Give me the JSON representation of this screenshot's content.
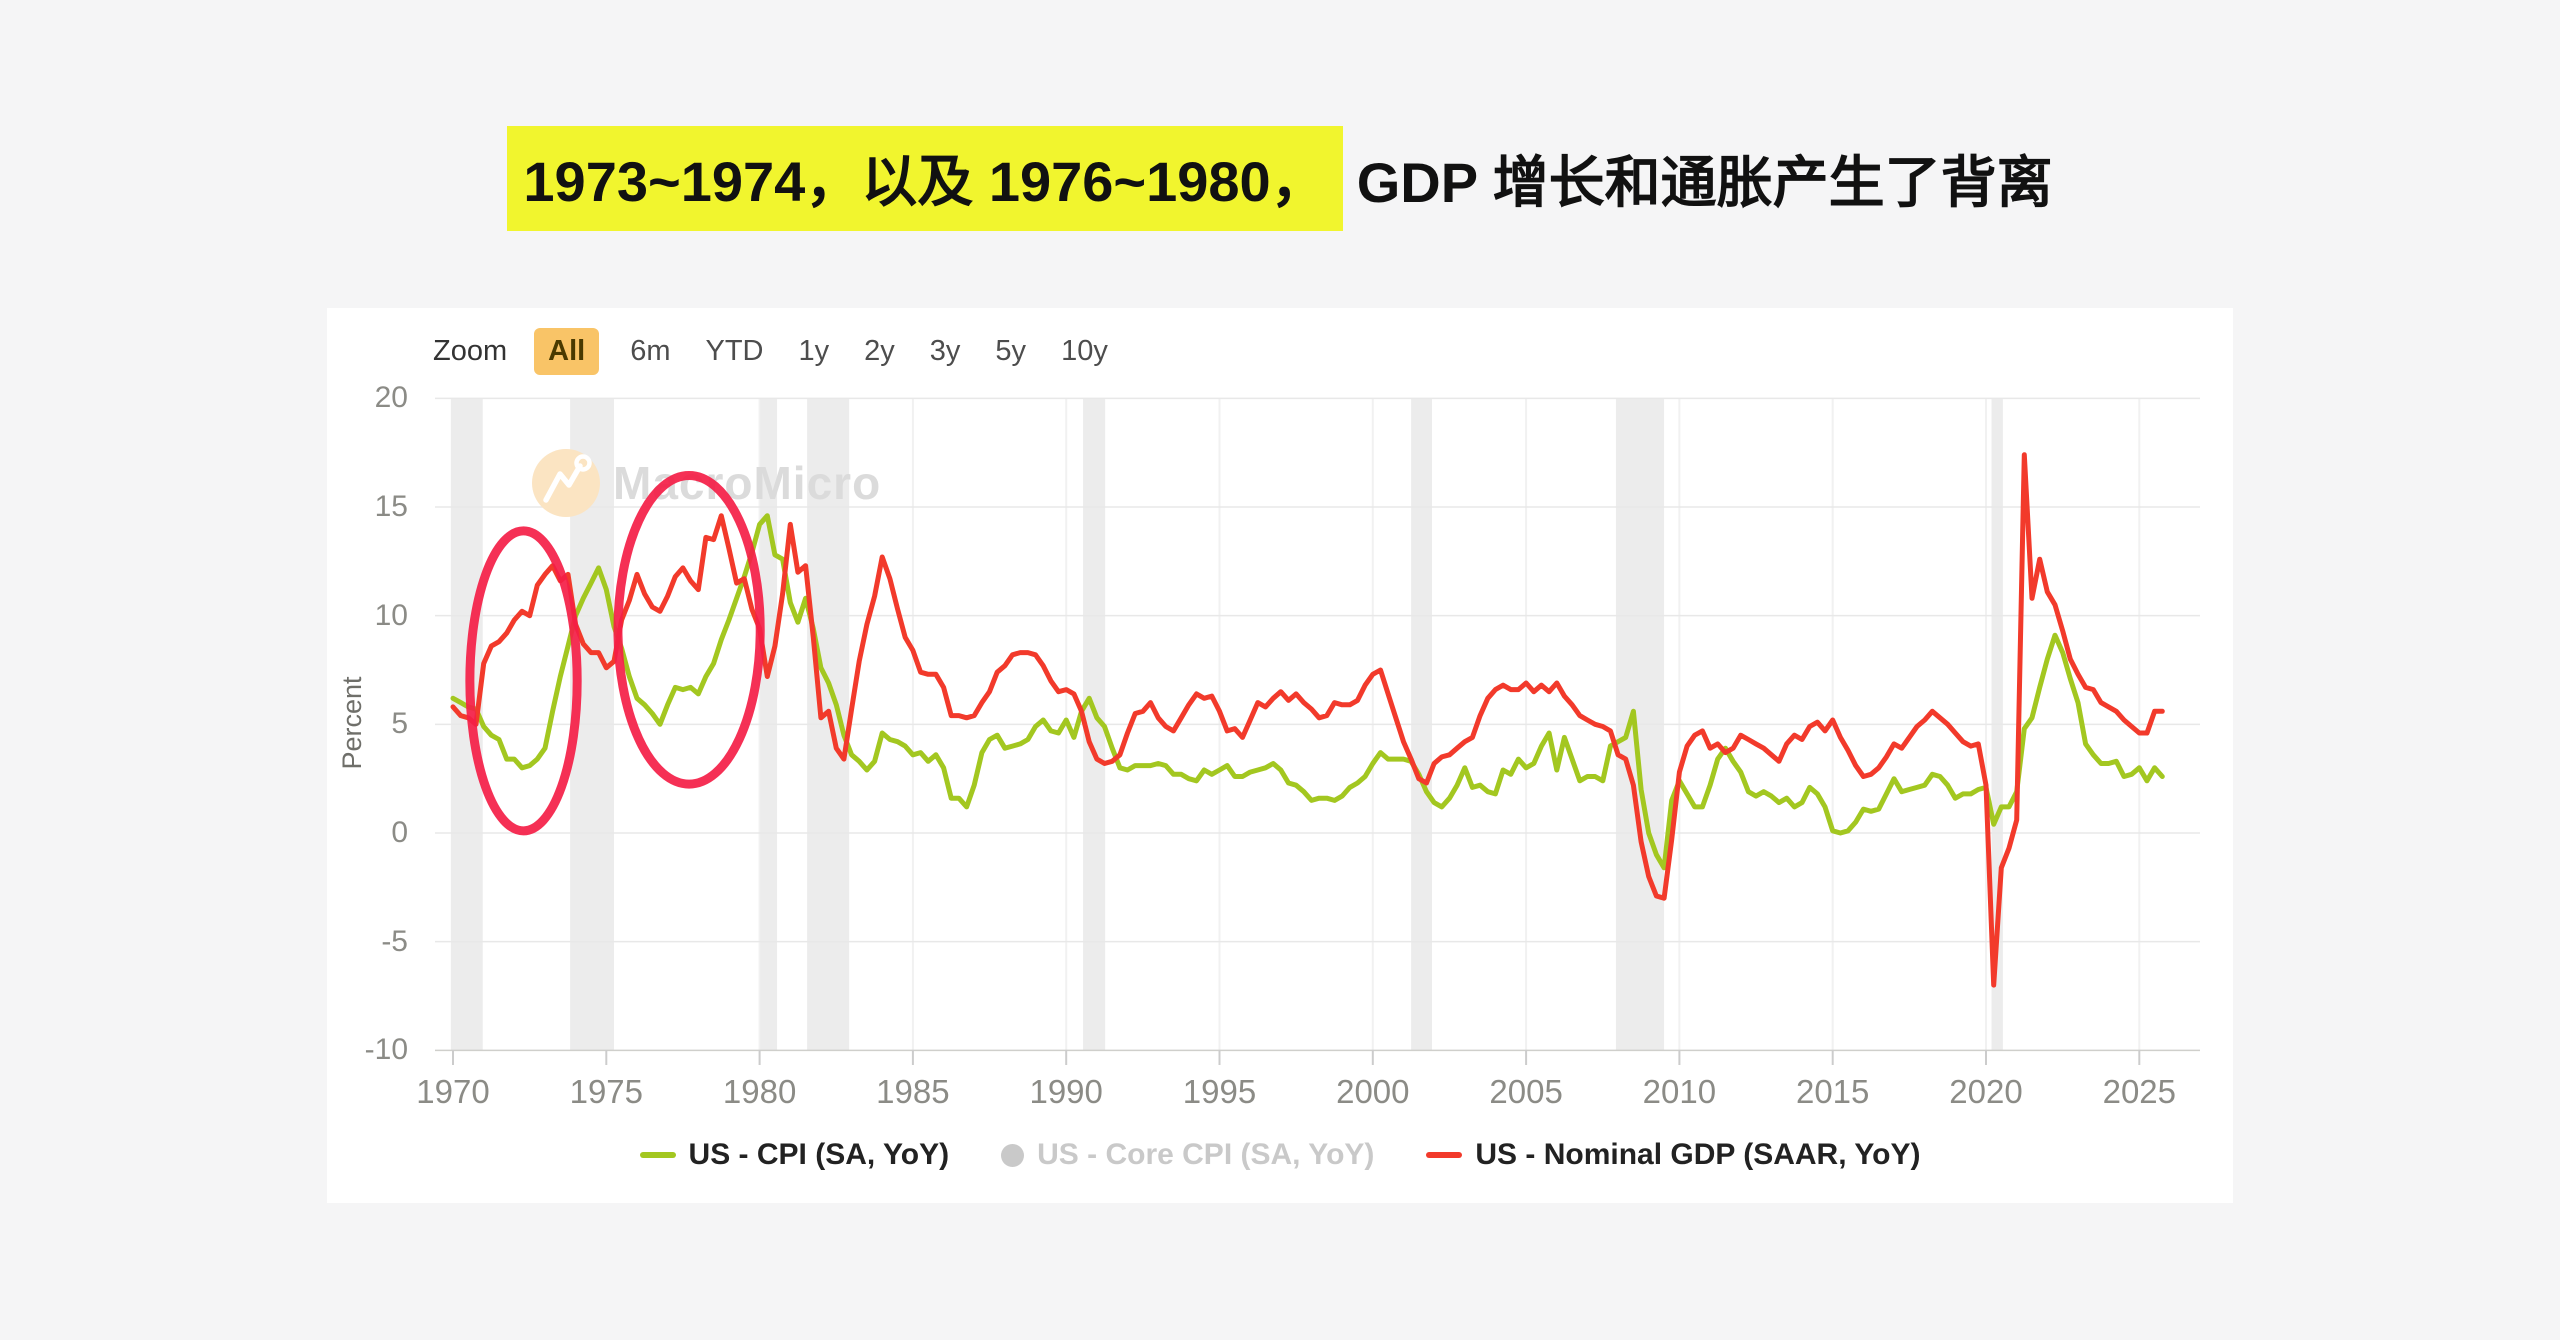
{
  "page": {
    "background": "#f5f5f6"
  },
  "title": {
    "highlight": "1973~1974，以及 1976~1980，",
    "rest": "GDP 增长和通胀产生了背离",
    "highlight_bg": "#f1f52e",
    "text_color": "#111111"
  },
  "chart": {
    "zoom_label": "Zoom",
    "ranges": [
      {
        "label": "All",
        "active": true
      },
      {
        "label": "6m",
        "active": false
      },
      {
        "label": "YTD",
        "active": false
      },
      {
        "label": "1y",
        "active": false
      },
      {
        "label": "2y",
        "active": false
      },
      {
        "label": "3y",
        "active": false
      },
      {
        "label": "5y",
        "active": false
      },
      {
        "label": "10y",
        "active": false
      }
    ],
    "active_range_bg": "#f9c467",
    "watermark": "MacroMicro",
    "watermark_logo_color": "#fbe4c2",
    "legend": [
      {
        "label": "US - CPI (SA, YoY)",
        "color": "#a3c720",
        "marker": "line",
        "enabled": true
      },
      {
        "label": "US - Core CPI (SA, YoY)",
        "color": "#c9c9c9",
        "marker": "circle",
        "enabled": false
      },
      {
        "label": "US - Nominal GDP (SAAR, YoY)",
        "color": "#f23a2b",
        "marker": "line",
        "enabled": true
      }
    ]
  },
  "chart_data": {
    "type": "line",
    "title": "",
    "xlabel": "",
    "ylabel": "Percent",
    "ylim": [
      -10,
      20
    ],
    "y_ticks": [
      20,
      15,
      10,
      5,
      0,
      -5,
      -10
    ],
    "x_ticks": [
      1970,
      1975,
      1980,
      1985,
      1990,
      1995,
      2000,
      2005,
      2010,
      2015,
      2020,
      2025
    ],
    "grid": "on",
    "legend_position": "bottom",
    "recession_bands": [
      [
        1969.93,
        1970.97
      ],
      [
        1973.82,
        1975.25
      ],
      [
        1980.02,
        1980.57
      ],
      [
        1981.55,
        1982.92
      ],
      [
        1990.55,
        1991.27
      ],
      [
        2001.25,
        2001.93
      ],
      [
        2007.93,
        2009.5
      ],
      [
        2020.18,
        2020.55
      ]
    ],
    "annotations": [
      {
        "type": "ellipse",
        "x_year": 1972.3,
        "y_value": 7.0,
        "rx_years": 1.75,
        "ry_values": 6.9,
        "color": "#f41e46"
      },
      {
        "type": "ellipse",
        "x_year": 1977.7,
        "y_value": 9.35,
        "rx_years": 2.32,
        "ry_values": 7.1,
        "color": "#f41e46"
      }
    ],
    "series": [
      {
        "name": "US - CPI (SA, YoY)",
        "color": "#a3c720",
        "start": 1970,
        "step": 0.25,
        "values": [
          6.2,
          6.0,
          5.8,
          5.7,
          4.9,
          4.5,
          4.3,
          3.4,
          3.4,
          3.0,
          3.1,
          3.4,
          3.9,
          5.6,
          7.2,
          8.6,
          10.0,
          10.8,
          11.5,
          12.2,
          11.2,
          9.5,
          8.5,
          7.2,
          6.2,
          5.9,
          5.5,
          5.0,
          5.9,
          6.7,
          6.6,
          6.7,
          6.4,
          7.2,
          7.8,
          8.9,
          9.8,
          10.8,
          11.8,
          12.9,
          14.2,
          14.6,
          12.8,
          12.6,
          10.6,
          9.7,
          10.8,
          9.4,
          7.6,
          6.9,
          5.9,
          4.5,
          3.6,
          3.3,
          2.9,
          3.3,
          4.6,
          4.3,
          4.2,
          4.0,
          3.6,
          3.7,
          3.3,
          3.6,
          3.0,
          1.6,
          1.6,
          1.2,
          2.2,
          3.7,
          4.3,
          4.5,
          3.9,
          4.0,
          4.1,
          4.3,
          4.9,
          5.2,
          4.7,
          4.6,
          5.2,
          4.4,
          5.6,
          6.2,
          5.3,
          4.9,
          3.9,
          3.0,
          2.9,
          3.1,
          3.1,
          3.1,
          3.2,
          3.1,
          2.7,
          2.7,
          2.5,
          2.4,
          2.9,
          2.7,
          2.9,
          3.1,
          2.6,
          2.6,
          2.8,
          2.9,
          3.0,
          3.2,
          2.9,
          2.3,
          2.2,
          1.9,
          1.5,
          1.6,
          1.6,
          1.5,
          1.7,
          2.1,
          2.3,
          2.6,
          3.2,
          3.7,
          3.4,
          3.4,
          3.4,
          3.3,
          2.7,
          1.9,
          1.4,
          1.2,
          1.6,
          2.2,
          3.0,
          2.1,
          2.2,
          1.9,
          1.8,
          2.9,
          2.7,
          3.4,
          3.0,
          3.2,
          4.0,
          4.6,
          2.9,
          4.4,
          3.4,
          2.4,
          2.6,
          2.6,
          2.4,
          4.0,
          4.2,
          4.4,
          5.6,
          2.0,
          0.0,
          -1.0,
          -1.6,
          1.5,
          2.4,
          1.8,
          1.2,
          1.2,
          2.2,
          3.4,
          3.9,
          3.3,
          2.8,
          1.9,
          1.7,
          1.9,
          1.7,
          1.4,
          1.6,
          1.2,
          1.4,
          2.1,
          1.8,
          1.2,
          0.1,
          0.0,
          0.1,
          0.5,
          1.1,
          1.0,
          1.1,
          1.8,
          2.5,
          1.9,
          2.0,
          2.1,
          2.2,
          2.7,
          2.6,
          2.2,
          1.6,
          1.8,
          1.8,
          2.0,
          2.1,
          0.4,
          1.2,
          1.2,
          1.9,
          4.8,
          5.3,
          6.7,
          8.0,
          9.1,
          8.3,
          7.1,
          6.0,
          4.1,
          3.6,
          3.2,
          3.2,
          3.3,
          2.6,
          2.7,
          3.0,
          2.4,
          3.0,
          2.6
        ]
      },
      {
        "name": "US - Nominal GDP (SAAR, YoY)",
        "color": "#f23a2b",
        "start": 1970,
        "step": 0.25,
        "values": [
          5.8,
          5.4,
          5.3,
          5.0,
          7.8,
          8.6,
          8.8,
          9.2,
          9.8,
          10.2,
          10.0,
          11.4,
          11.9,
          12.3,
          11.6,
          11.9,
          9.6,
          8.7,
          8.3,
          8.3,
          7.6,
          7.9,
          9.8,
          10.7,
          11.9,
          11.0,
          10.4,
          10.2,
          10.9,
          11.8,
          12.2,
          11.6,
          11.2,
          13.6,
          13.5,
          14.6,
          13.1,
          11.5,
          11.7,
          10.3,
          9.4,
          7.2,
          8.6,
          11.0,
          14.2,
          12.0,
          12.3,
          9.0,
          5.3,
          5.6,
          3.9,
          3.4,
          5.7,
          7.9,
          9.6,
          10.9,
          12.7,
          11.7,
          10.3,
          9.0,
          8.4,
          7.4,
          7.3,
          7.3,
          6.7,
          5.4,
          5.4,
          5.3,
          5.4,
          6.0,
          6.5,
          7.4,
          7.7,
          8.2,
          8.3,
          8.3,
          8.2,
          7.7,
          7.0,
          6.5,
          6.6,
          6.4,
          5.6,
          4.2,
          3.4,
          3.2,
          3.3,
          3.6,
          4.6,
          5.5,
          5.6,
          6.0,
          5.3,
          4.9,
          4.7,
          5.3,
          5.9,
          6.4,
          6.2,
          6.3,
          5.6,
          4.7,
          4.8,
          4.4,
          5.2,
          6.0,
          5.8,
          6.2,
          6.5,
          6.1,
          6.4,
          6.0,
          5.7,
          5.3,
          5.4,
          6.0,
          5.9,
          5.9,
          6.1,
          6.8,
          7.3,
          7.5,
          6.4,
          5.3,
          4.2,
          3.4,
          2.5,
          2.3,
          3.2,
          3.5,
          3.6,
          3.9,
          4.2,
          4.4,
          5.4,
          6.2,
          6.6,
          6.8,
          6.6,
          6.6,
          6.9,
          6.5,
          6.8,
          6.5,
          6.9,
          6.3,
          5.9,
          5.4,
          5.2,
          5.0,
          4.9,
          4.7,
          3.6,
          3.4,
          2.2,
          -0.4,
          -2.0,
          -2.9,
          -3.0,
          -0.3,
          2.8,
          4.0,
          4.5,
          4.7,
          3.9,
          4.1,
          3.7,
          3.9,
          4.5,
          4.3,
          4.1,
          3.9,
          3.6,
          3.3,
          4.1,
          4.5,
          4.3,
          4.9,
          5.1,
          4.7,
          5.2,
          4.4,
          3.8,
          3.1,
          2.6,
          2.7,
          3.0,
          3.5,
          4.1,
          3.9,
          4.4,
          4.9,
          5.2,
          5.6,
          5.3,
          5.0,
          4.6,
          4.2,
          4.0,
          4.1,
          2.2,
          -7.0,
          -1.6,
          -0.7,
          0.6,
          17.4,
          10.8,
          12.6,
          11.1,
          10.5,
          9.3,
          8.0,
          7.3,
          6.7,
          6.6,
          6.0,
          5.8,
          5.6,
          5.2,
          4.9,
          4.6,
          4.6,
          5.6,
          5.6
        ]
      }
    ]
  }
}
